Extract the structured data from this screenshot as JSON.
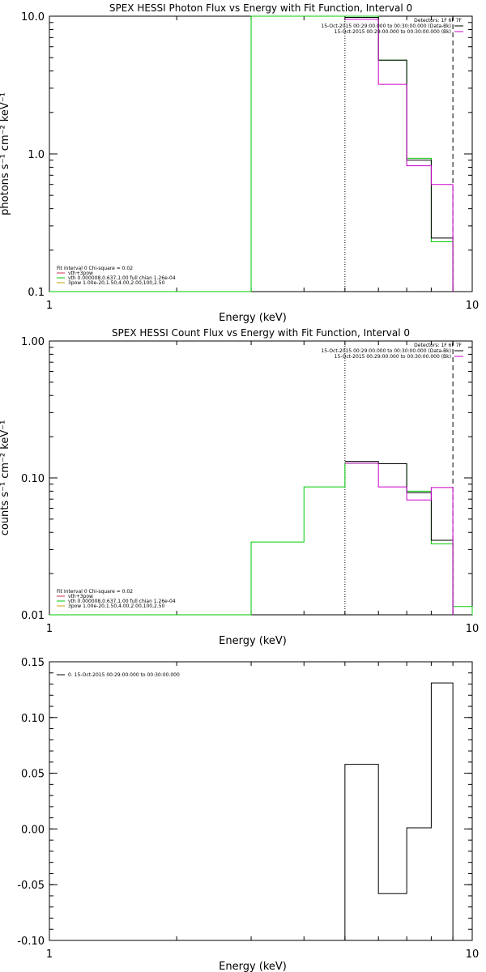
{
  "chart_data": [
    {
      "type": "line",
      "title": "SPEX HESSI Photon Flux vs Energy with Fit Function, Interval 0",
      "xlabel": "Energy (keV)",
      "ylabel": "photons s⁻¹ cm⁻² keV⁻¹",
      "xscale": "log",
      "yscale": "log",
      "xlim": [
        1,
        10
      ],
      "ylim": [
        0.1,
        10
      ],
      "xticks": [
        "1",
        "10"
      ],
      "yticks": [
        {
          "v": 0.1,
          "label": "0.1"
        },
        {
          "v": 1,
          "label": "1.0"
        },
        {
          "v": 10,
          "label": "10.0"
        }
      ],
      "grid": false,
      "legend_left": {
        "placement": "bottom-left",
        "header": "Fit Interval 0   Chi-square = 0.02",
        "items": [
          {
            "text": "vth+3pow",
            "color": "#cc3355"
          },
          {
            "text": "vth 0.000008,0.637,1.00  full chian 1.26e-04",
            "color": "#00cc00"
          },
          {
            "text": "3pow 1.00e-20,1.50,4.00,2.00,100,2.50",
            "color": "#c8a000"
          }
        ]
      },
      "legend_right": {
        "placement": "top-right",
        "header": "Detectors: 1F 6F 7F",
        "items": [
          {
            "text": "15-Oct-2015 00:29:00.000 to 00:30:00.000 (Data-Bk)",
            "color": "#000000"
          },
          {
            "text": "15-Oct-2015 00:29:00.000 to 00:30:00.000 (Bk)",
            "color": "#cc00cc"
          }
        ]
      },
      "vlines": [
        {
          "x": 5.0,
          "style": "dotted",
          "color": "#000000"
        },
        {
          "x": 9.0,
          "style": "dashed",
          "color": "#000000"
        }
      ],
      "series": [
        {
          "color": "#00cc00",
          "edges": [
            1,
            3.0,
            5.0,
            6.0,
            7.0,
            8.0,
            9.0
          ],
          "values": [
            0.1,
            10.0,
            10.0,
            4.8,
            0.93,
            0.23
          ]
        },
        {
          "color": "#000000",
          "edges": [
            5.0,
            6.0,
            7.0,
            8.0,
            9.0
          ],
          "values": [
            9.8,
            4.8,
            0.9,
            0.245
          ]
        },
        {
          "color": "#cc00cc",
          "edges": [
            5.0,
            6.0,
            7.0,
            8.0,
            9.0
          ],
          "values": [
            9.5,
            3.2,
            0.82,
            0.6
          ]
        }
      ]
    },
    {
      "type": "line",
      "title": "SPEX HESSI Count Flux vs Energy with Fit Function, Interval 0",
      "xlabel": "Energy (keV)",
      "ylabel": "counts s⁻¹ cm⁻² keV⁻¹",
      "xscale": "log",
      "yscale": "log",
      "xlim": [
        1,
        10
      ],
      "ylim": [
        0.01,
        1
      ],
      "xticks": [
        "1",
        "10"
      ],
      "yticks": [
        {
          "v": 0.01,
          "label": "0.01"
        },
        {
          "v": 0.1,
          "label": "0.10"
        },
        {
          "v": 1,
          "label": "1.00"
        }
      ],
      "grid": false,
      "legend_left": {
        "placement": "bottom-left",
        "header": "Fit Interval 0   Chi-square = 0.02",
        "items": [
          {
            "text": "vth+3pow",
            "color": "#cc3355"
          },
          {
            "text": "vth 0.000008,0.637,1.00  full chian 1.26e-04",
            "color": "#00cc00"
          },
          {
            "text": "3pow 1.00e-20,1.50,4.00,2.00,100,2.50",
            "color": "#c8a000"
          }
        ]
      },
      "legend_right": {
        "placement": "top-right",
        "header": "Detectors: 1F 6F 7F",
        "items": [
          {
            "text": "15-Oct-2015 00:29:00.000 to 00:30:00.000 (Data-Bk)",
            "color": "#000000"
          },
          {
            "text": "15-Oct-2015 00:29:00.000 to 00:30:00.000 (Bk)",
            "color": "#cc00cc"
          }
        ]
      },
      "vlines": [
        {
          "x": 5.0,
          "style": "dotted",
          "color": "#000000"
        },
        {
          "x": 9.0,
          "style": "dashed",
          "color": "#000000"
        }
      ],
      "series": [
        {
          "color": "#00cc00",
          "edges": [
            1,
            3.0,
            4.0,
            5.0,
            6.0,
            7.0,
            8.0,
            9.0,
            10
          ],
          "values": [
            0.01,
            0.034,
            0.086,
            0.128,
            0.127,
            0.08,
            0.033,
            0.0115
          ]
        },
        {
          "color": "#000000",
          "edges": [
            5.0,
            6.0,
            7.0,
            8.0,
            9.0
          ],
          "values": [
            0.132,
            0.127,
            0.078,
            0.035
          ]
        },
        {
          "color": "#cc00cc",
          "edges": [
            5.0,
            6.0,
            7.0,
            8.0,
            9.0
          ],
          "values": [
            0.128,
            0.086,
            0.069,
            0.085
          ]
        }
      ]
    },
    {
      "type": "line",
      "title": "",
      "xlabel": "Energy (keV)",
      "ylabel": "",
      "xscale": "log",
      "yscale": "linear",
      "xlim": [
        1,
        10
      ],
      "ylim": [
        -0.1,
        0.15
      ],
      "xticks": [
        "1",
        "10"
      ],
      "yticks": [
        {
          "v": -0.1,
          "label": "-0.10"
        },
        {
          "v": -0.05,
          "label": "-0.05"
        },
        {
          "v": 0.0,
          "label": "0.00"
        },
        {
          "v": 0.05,
          "label": "0.05"
        },
        {
          "v": 0.1,
          "label": "0.10"
        },
        {
          "v": 0.15,
          "label": "0.15"
        }
      ],
      "grid": false,
      "legend_left": {
        "placement": "top-left",
        "header": "",
        "items": [
          {
            "text": "0. 15-Oct-2015 00:29:00.000 to 00:30:00.000",
            "color": "#000000"
          }
        ]
      },
      "legend_right": null,
      "vlines": [],
      "series": [
        {
          "color": "#000000",
          "edges": [
            5.0,
            6.0,
            7.0,
            8.0,
            9.0
          ],
          "values": [
            0.058,
            -0.058,
            0.001,
            0.131
          ],
          "from_bottom": true
        }
      ]
    }
  ]
}
